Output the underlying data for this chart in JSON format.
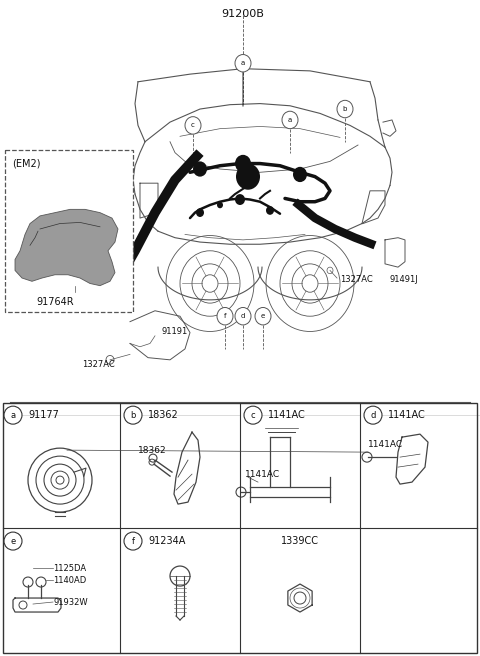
{
  "bg_color": "#ffffff",
  "fig_width": 4.8,
  "fig_height": 6.56,
  "dpi": 100,
  "main_label": "91200B",
  "em2_label": "(EM2)",
  "em2_part": "91764R",
  "line_color": "#555555",
  "text_color": "#111111",
  "grid_label_top": [
    "a",
    "b",
    "c",
    "d"
  ],
  "grid_part_top": [
    "91177",
    "18362",
    "1141AC",
    "1141AC"
  ],
  "grid_label_bot": [
    "e",
    "f"
  ],
  "grid_part_bot_f": "91234A",
  "grid_part_bot_cc": "1339CC"
}
